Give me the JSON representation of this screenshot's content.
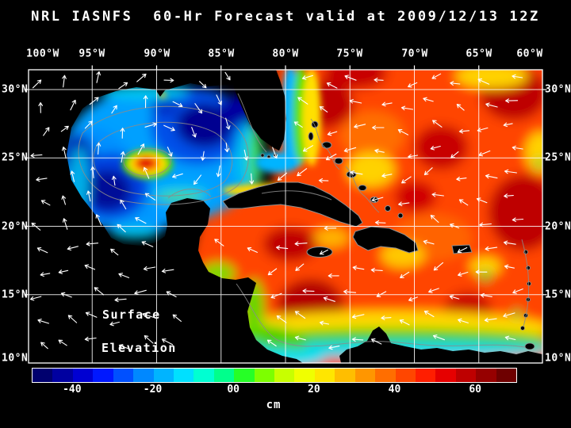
{
  "title": "NRL IASNFS  60-Hr Forecast valid at 2009/12/13 12Z",
  "axes": {
    "lon_labels": [
      "100°W",
      "95°W",
      "90°W",
      "85°W",
      "80°W",
      "75°W",
      "70°W",
      "65°W",
      "60°W"
    ],
    "lat_labels": [
      "30°N",
      "25°N",
      "20°N",
      "15°N",
      "10°N"
    ]
  },
  "annotation": {
    "line1": "Surface",
    "line2": "Elevation"
  },
  "colorbar": {
    "unit": "cm",
    "range": [
      -50,
      70
    ],
    "ticks": [
      {
        "label": "-40",
        "value": -40
      },
      {
        "label": "-20",
        "value": -20
      },
      {
        "label": "00",
        "value": 0
      },
      {
        "label": "20",
        "value": 20
      },
      {
        "label": "40",
        "value": 40
      },
      {
        "label": "60",
        "value": 60
      }
    ],
    "colors": [
      "#00006E",
      "#0000A0",
      "#0000D2",
      "#0018FF",
      "#0050FF",
      "#0088FF",
      "#00B4FF",
      "#00E0FF",
      "#00FFD2",
      "#00FF8C",
      "#26FF26",
      "#7DFF00",
      "#C8FF00",
      "#F0FF00",
      "#FFE600",
      "#FFBE00",
      "#FF9600",
      "#FF6E00",
      "#FF4600",
      "#FF1E00",
      "#E60000",
      "#BE0000",
      "#960000",
      "#6E0000"
    ]
  },
  "chart_data": {
    "type": "heatmap",
    "title": "NRL IASNFS  60-Hr Forecast valid at 2009/12/13 12Z",
    "variable": "Surface Elevation",
    "unit": "cm",
    "x_ticks": [
      "100°W",
      "95°W",
      "90°W",
      "85°W",
      "80°W",
      "75°W",
      "70°W",
      "65°W",
      "60°W"
    ],
    "y_ticks": [
      "30°N",
      "25°N",
      "20°N",
      "15°N",
      "10°N"
    ],
    "colorbar_ticks": [
      -40,
      -20,
      0,
      20,
      40,
      60
    ],
    "colorbar_range": [
      -50,
      70
    ],
    "overlays": [
      "white current vector arrows",
      "gray bathymetry contours",
      "white 5-degree lat/lon grid",
      "negative (blue) surface elevation in Gulf of Mexico with warm-core eddy",
      "positive (red/orange) surface elevation in Atlantic and Caribbean"
    ]
  }
}
